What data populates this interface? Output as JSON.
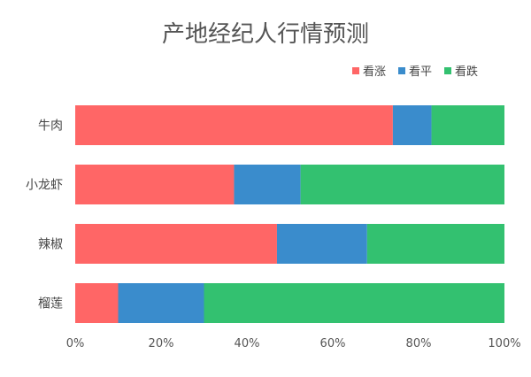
{
  "chart_data": {
    "type": "bar",
    "orientation": "horizontal",
    "stacked": true,
    "normalized": true,
    "title": "产地经纪人行情预测",
    "categories": [
      "牛肉",
      "小龙虾",
      "辣椒",
      "榴莲"
    ],
    "series": [
      {
        "name": "看涨",
        "color": "#ff6666",
        "values": [
          74,
          37,
          47,
          10
        ]
      },
      {
        "name": "看平",
        "color": "#3a8ccc",
        "values": [
          9,
          15.5,
          21,
          20
        ]
      },
      {
        "name": "看跌",
        "color": "#33c170",
        "values": [
          17,
          47.5,
          32,
          70
        ]
      }
    ],
    "xticks": [
      "0%",
      "20%",
      "40%",
      "60%",
      "80%",
      "100%"
    ],
    "xlim": [
      0,
      100
    ],
    "legend_position": "top-right",
    "grid": false
  }
}
